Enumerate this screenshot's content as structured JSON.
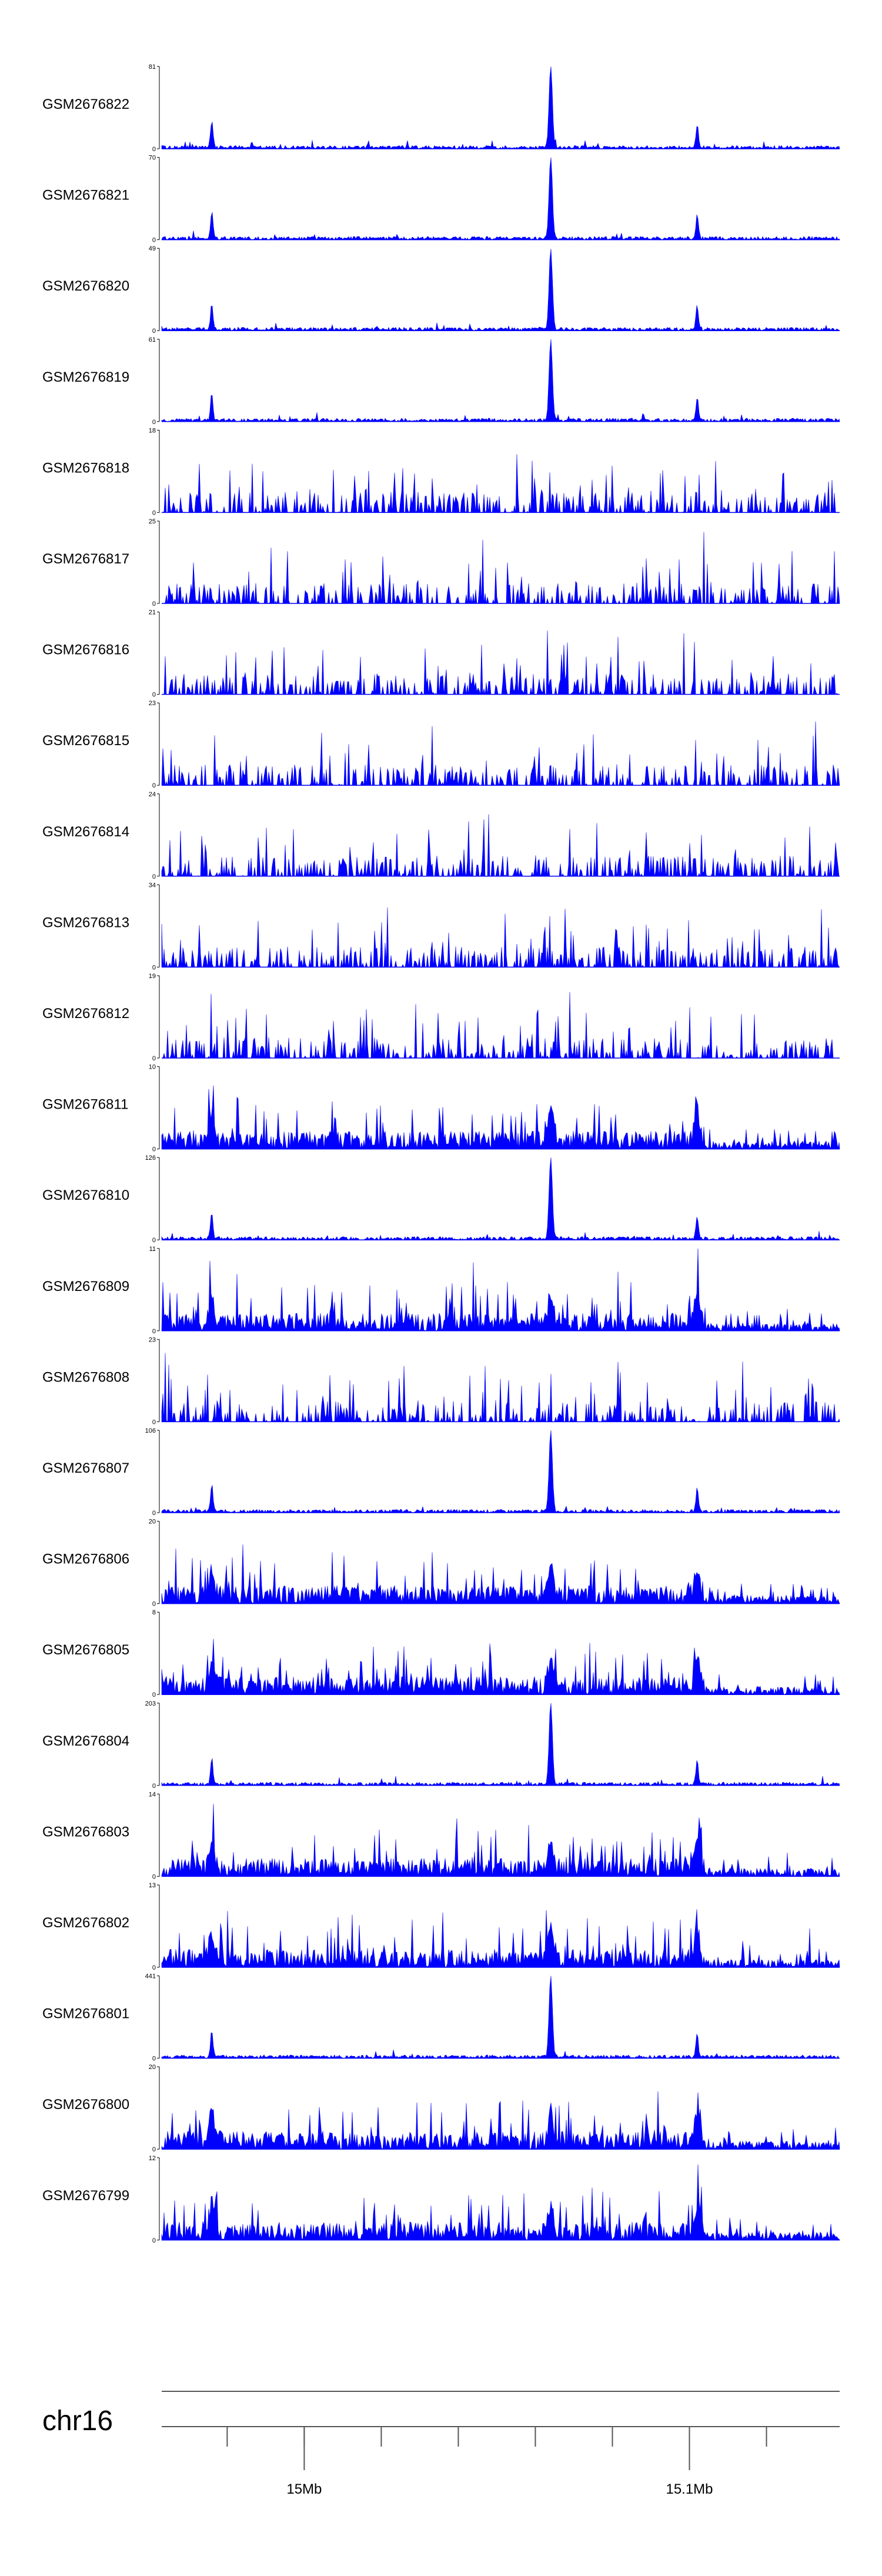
{
  "chart_data": {
    "type": "area",
    "color": "#0000ff",
    "tracks": [
      {
        "name": "GSM2676822",
        "ymax_label": "81",
        "ymin_label": "0",
        "ymax": 81,
        "profile": "sharp",
        "seed": 22
      },
      {
        "name": "GSM2676821",
        "ymax_label": "70",
        "ymin_label": "0",
        "ymax": 70,
        "profile": "sharp",
        "seed": 21
      },
      {
        "name": "GSM2676820",
        "ymax_label": "49",
        "ymin_label": "0",
        "ymax": 49,
        "profile": "sharp",
        "seed": 20
      },
      {
        "name": "GSM2676819",
        "ymax_label": "61",
        "ymin_label": "0",
        "ymax": 61,
        "profile": "sharp",
        "seed": 19
      },
      {
        "name": "GSM2676818",
        "ymax_label": "18",
        "ymin_label": "0",
        "ymax": 18,
        "profile": "sparse",
        "seed": 18
      },
      {
        "name": "GSM2676817",
        "ymax_label": "25",
        "ymin_label": "0",
        "ymax": 25,
        "profile": "sparse",
        "seed": 17
      },
      {
        "name": "GSM2676816",
        "ymax_label": "21",
        "ymin_label": "0",
        "ymax": 21,
        "profile": "sparse",
        "seed": 16
      },
      {
        "name": "GSM2676815",
        "ymax_label": "23",
        "ymin_label": "0",
        "ymax": 23,
        "profile": "sparse",
        "seed": 15
      },
      {
        "name": "GSM2676814",
        "ymax_label": "24",
        "ymin_label": "0",
        "ymax": 24,
        "profile": "sparse",
        "seed": 14
      },
      {
        "name": "GSM2676813",
        "ymax_label": "34",
        "ymin_label": "0",
        "ymax": 34,
        "profile": "sparse",
        "seed": 13
      },
      {
        "name": "GSM2676812",
        "ymax_label": "19",
        "ymin_label": "0",
        "ymax": 19,
        "profile": "sparse",
        "seed": 12
      },
      {
        "name": "GSM2676811",
        "ymax_label": "10",
        "ymin_label": "0",
        "ymax": 10,
        "profile": "dense",
        "seed": 11
      },
      {
        "name": "GSM2676810",
        "ymax_label": "126",
        "ymin_label": "0",
        "ymax": 126,
        "profile": "sharp",
        "seed": 10
      },
      {
        "name": "GSM2676809",
        "ymax_label": "11",
        "ymin_label": "0",
        "ymax": 11,
        "profile": "dense",
        "seed": 9
      },
      {
        "name": "GSM2676808",
        "ymax_label": "23",
        "ymin_label": "0",
        "ymax": 23,
        "profile": "sparse",
        "seed": 8
      },
      {
        "name": "GSM2676807",
        "ymax_label": "106",
        "ymin_label": "0",
        "ymax": 106,
        "profile": "sharp",
        "seed": 7
      },
      {
        "name": "GSM2676806",
        "ymax_label": "20",
        "ymin_label": "0",
        "ymax": 20,
        "profile": "dense",
        "seed": 6
      },
      {
        "name": "GSM2676805",
        "ymax_label": "8",
        "ymin_label": "0",
        "ymax": 8,
        "profile": "dense",
        "seed": 5
      },
      {
        "name": "GSM2676804",
        "ymax_label": "203",
        "ymin_label": "0",
        "ymax": 203,
        "profile": "sharp",
        "seed": 4
      },
      {
        "name": "GSM2676803",
        "ymax_label": "14",
        "ymin_label": "0",
        "ymax": 14,
        "profile": "dense",
        "seed": 3
      },
      {
        "name": "GSM2676802",
        "ymax_label": "13",
        "ymin_label": "0",
        "ymax": 13,
        "profile": "dense",
        "seed": 2
      },
      {
        "name": "GSM2676801",
        "ymax_label": "441",
        "ymin_label": "0",
        "ymax": 441,
        "profile": "sharp",
        "seed": 1
      },
      {
        "name": "GSM2676800",
        "ymax_label": "20",
        "ymin_label": "0",
        "ymax": 20,
        "profile": "dense",
        "seed": 100
      },
      {
        "name": "GSM2676799",
        "ymax_label": "12",
        "ymin_label": "0",
        "ymax": 12,
        "profile": "dense",
        "seed": 99
      }
    ],
    "chromosome": "chr16",
    "x_axis": {
      "range_mb": [
        14.963,
        15.139
      ],
      "minor_ticks_mb": [
        14.98,
        15.0,
        15.02,
        15.04,
        15.06,
        15.08,
        15.1,
        15.12
      ],
      "labeled_ticks": [
        {
          "pos_mb": 15.0,
          "label": "15Mb"
        },
        {
          "pos_mb": 15.1,
          "label": "15.1Mb"
        }
      ]
    },
    "common_peaks_mb": [
      14.976,
      15.064,
      15.102
    ]
  }
}
